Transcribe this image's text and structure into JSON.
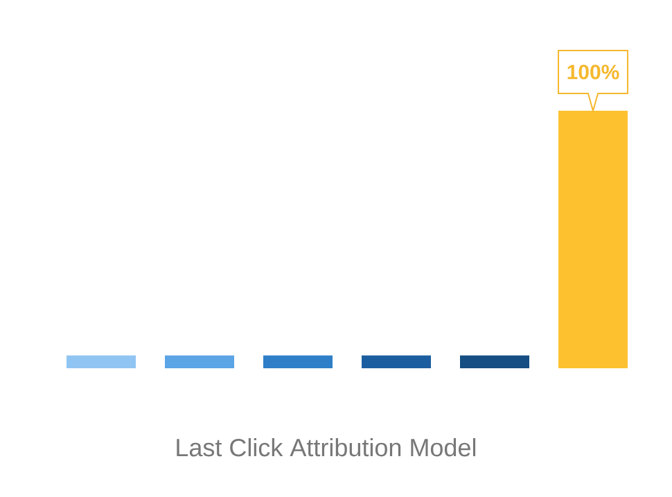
{
  "chart_data": {
    "type": "bar",
    "title": "Last Click Attribution Model",
    "categories": [
      null,
      null,
      null,
      null,
      null,
      null
    ],
    "values": [
      5,
      5,
      5,
      5,
      5,
      100
    ],
    "colors": [
      "#90c5f3",
      "#5ba4e6",
      "#2e7fc8",
      "#1b5ea0",
      "#144e82",
      "#fdc130"
    ],
    "value_labels": [
      null,
      null,
      null,
      null,
      null,
      "100%"
    ]
  }
}
